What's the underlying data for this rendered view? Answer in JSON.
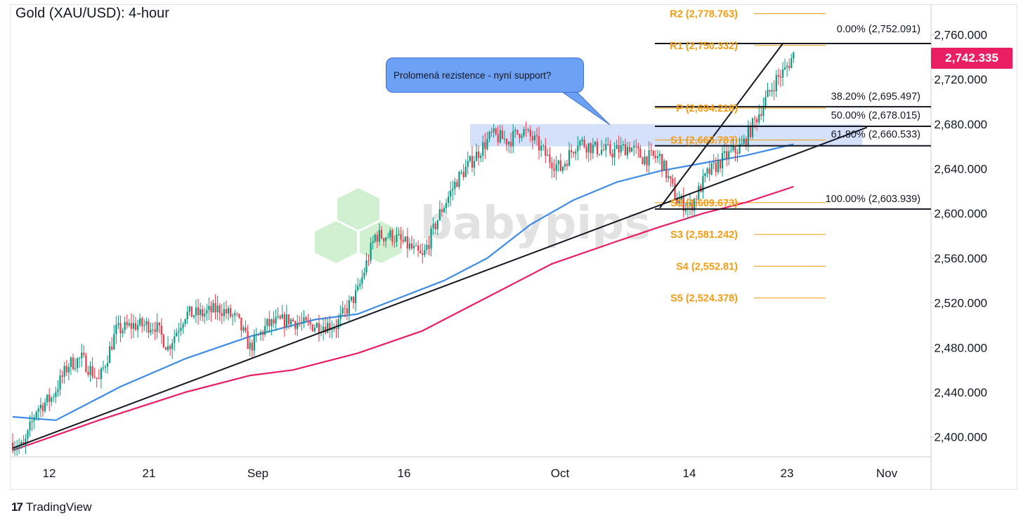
{
  "title": "Gold (XAU/USD): 4-hour",
  "current_price": "2,742.335",
  "callout_text": "Prolomená rezistence - nyní support?",
  "watermark": "babypips",
  "branding": "TradingView",
  "colors": {
    "up_candle": "#089981",
    "down_candle": "#f23645",
    "ma_blue": "#3d8be8",
    "ma_pink": "#e91e63",
    "pivot_orange": "#f39c12",
    "resistance_zone": "#b3c9f5",
    "price_badge": "#e91e63"
  },
  "chart_data": {
    "type": "candlestick",
    "title": "Gold (XAU/USD): 4-hour",
    "xlabel": "",
    "ylabel": "",
    "ylim": [
      2386,
      2786
    ],
    "x_tick_labels": [
      "12",
      "21",
      "Sep",
      "16",
      "Oct",
      "14",
      "23",
      "Nov"
    ],
    "y_tick_labels": [
      "2,760.000",
      "2,720.000",
      "2,680.000",
      "2,640.000",
      "2,600.000",
      "2,560.000",
      "2,520.000",
      "2,480.000",
      "2,440.000",
      "2,400.000"
    ],
    "y_tick_values": [
      2760,
      2720,
      2680,
      2640,
      2600,
      2560,
      2520,
      2480,
      2440,
      2400
    ],
    "price_anchors": [
      [
        0,
        2395
      ],
      [
        5,
        2390
      ],
      [
        11,
        2425
      ],
      [
        18,
        2435
      ],
      [
        26,
        2465
      ],
      [
        32,
        2470
      ],
      [
        40,
        2450
      ],
      [
        48,
        2495
      ],
      [
        56,
        2500
      ],
      [
        66,
        2500
      ],
      [
        72,
        2480
      ],
      [
        80,
        2510
      ],
      [
        88,
        2510
      ],
      [
        96,
        2515
      ],
      [
        104,
        2505
      ],
      [
        110,
        2480
      ],
      [
        118,
        2500
      ],
      [
        128,
        2505
      ],
      [
        136,
        2500
      ],
      [
        150,
        2500
      ],
      [
        160,
        2530
      ],
      [
        168,
        2580
      ],
      [
        176,
        2580
      ],
      [
        184,
        2570
      ],
      [
        190,
        2560
      ],
      [
        198,
        2600
      ],
      [
        206,
        2630
      ],
      [
        214,
        2650
      ],
      [
        222,
        2670
      ],
      [
        230,
        2665
      ],
      [
        236,
        2675
      ],
      [
        242,
        2665
      ],
      [
        248,
        2650
      ],
      [
        254,
        2640
      ],
      [
        262,
        2665
      ],
      [
        270,
        2658
      ],
      [
        278,
        2655
      ],
      [
        286,
        2660
      ],
      [
        292,
        2650
      ],
      [
        300,
        2650
      ],
      [
        308,
        2612
      ],
      [
        314,
        2605
      ],
      [
        322,
        2635
      ],
      [
        330,
        2650
      ],
      [
        338,
        2660
      ],
      [
        346,
        2690
      ],
      [
        354,
        2720
      ],
      [
        358,
        2728
      ],
      [
        362,
        2742
      ]
    ],
    "moving_averages": [
      {
        "period_color": "#3d8be8",
        "points": [
          [
            0,
            2418
          ],
          [
            20,
            2415
          ],
          [
            50,
            2445
          ],
          [
            80,
            2470
          ],
          [
            110,
            2490
          ],
          [
            140,
            2505
          ],
          [
            160,
            2510
          ],
          [
            180,
            2525
          ],
          [
            200,
            2540
          ],
          [
            220,
            2560
          ],
          [
            240,
            2590
          ],
          [
            260,
            2612
          ],
          [
            280,
            2628
          ],
          [
            300,
            2638
          ],
          [
            320,
            2645
          ],
          [
            340,
            2652
          ],
          [
            362,
            2662
          ]
        ]
      },
      {
        "period_color": "#e91e63",
        "points": [
          [
            0,
            2388
          ],
          [
            40,
            2415
          ],
          [
            80,
            2440
          ],
          [
            110,
            2455
          ],
          [
            130,
            2460
          ],
          [
            160,
            2475
          ],
          [
            190,
            2495
          ],
          [
            220,
            2525
          ],
          [
            250,
            2555
          ],
          [
            280,
            2575
          ],
          [
            300,
            2588
          ],
          [
            320,
            2600
          ],
          [
            340,
            2610
          ],
          [
            362,
            2624
          ]
        ]
      }
    ],
    "trendlines": [
      {
        "from": [
          0,
          2390
        ],
        "to": [
          396,
          2677
        ]
      },
      {
        "from": [
          300,
          2605
        ],
        "to": [
          357,
          2752
        ]
      }
    ],
    "resistance_zone": [
      2660,
      2680
    ],
    "resistance_zone_x": [
      212,
      394
    ],
    "pivot_levels": [
      {
        "label": "R2 (2,778.763)",
        "value": 2778.763
      },
      {
        "label": "R1 (2,750.332)",
        "value": 2750.332
      },
      {
        "label": "P (2,694.218)",
        "value": 2694.218
      },
      {
        "label": "S1 (2,665.787)",
        "value": 2665.787
      },
      {
        "label": "S2 (2,609.673)",
        "value": 2609.673
      },
      {
        "label": "S3 (2,581.242)",
        "value": 2581.242
      },
      {
        "label": "S4 (2,552.81)",
        "value": 2552.81
      },
      {
        "label": "S5 (2,524.378)",
        "value": 2524.378
      }
    ],
    "fib_levels": [
      {
        "label": "0.00% (2,752.091)",
        "value": 2752.091
      },
      {
        "label": "38.20% (2,695.497)",
        "value": 2695.497
      },
      {
        "label": "50.00% (2,678.015)",
        "value": 2678.015
      },
      {
        "label": "61.80% (2,660.533)",
        "value": 2660.533
      },
      {
        "label": "100.00% (2,603.939)",
        "value": 2603.939
      }
    ]
  }
}
